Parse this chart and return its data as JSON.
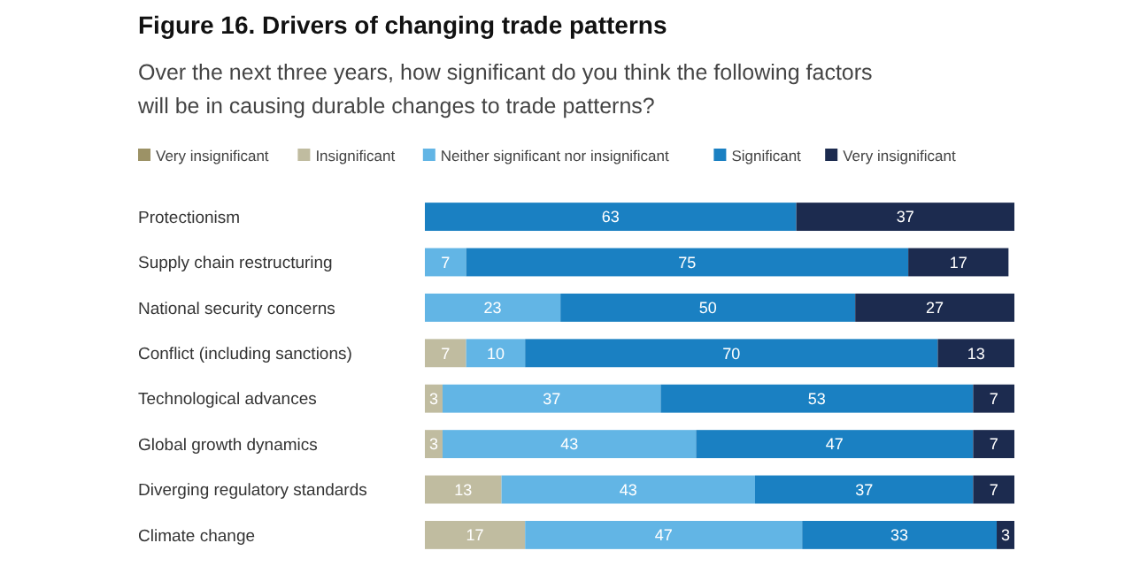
{
  "chart_data": {
    "type": "bar",
    "orientation": "horizontal",
    "stacked": true,
    "data_labels": true,
    "legend": "top",
    "title": "Figure 16. Drivers of changing trade patterns",
    "subtitle": "Over the next three years, how significant do you think the following factors will be in causing durable changes to trade patterns?",
    "categories": [
      "Protectionism",
      "Supply chain restructuring",
      "National security concerns",
      "Conflict (including sanctions)",
      "Technological advances",
      "Global growth dynamics",
      "Diverging regulatory standards",
      "Climate change"
    ],
    "tick_labels": "y",
    "xlim": [
      0,
      100
    ],
    "series": [
      {
        "name": "Very insignificant",
        "color": "#9c9266",
        "values": [
          null,
          null,
          null,
          null,
          null,
          null,
          null,
          null
        ]
      },
      {
        "name": "Insignificant",
        "color": "#c0bca0",
        "values": [
          null,
          null,
          null,
          7,
          3,
          3,
          13,
          17
        ]
      },
      {
        "name": "Neither significant nor insignificant",
        "color": "#62b5e5",
        "values": [
          null,
          7,
          23,
          10,
          37,
          43,
          43,
          47
        ]
      },
      {
        "name": "Significant",
        "color": "#1a80c2",
        "values": [
          63,
          75,
          50,
          70,
          53,
          47,
          37,
          33
        ]
      },
      {
        "name": "Very insignificant",
        "color": "#1c2b4f",
        "values": [
          37,
          17,
          27,
          13,
          7,
          7,
          7,
          3
        ]
      }
    ]
  }
}
